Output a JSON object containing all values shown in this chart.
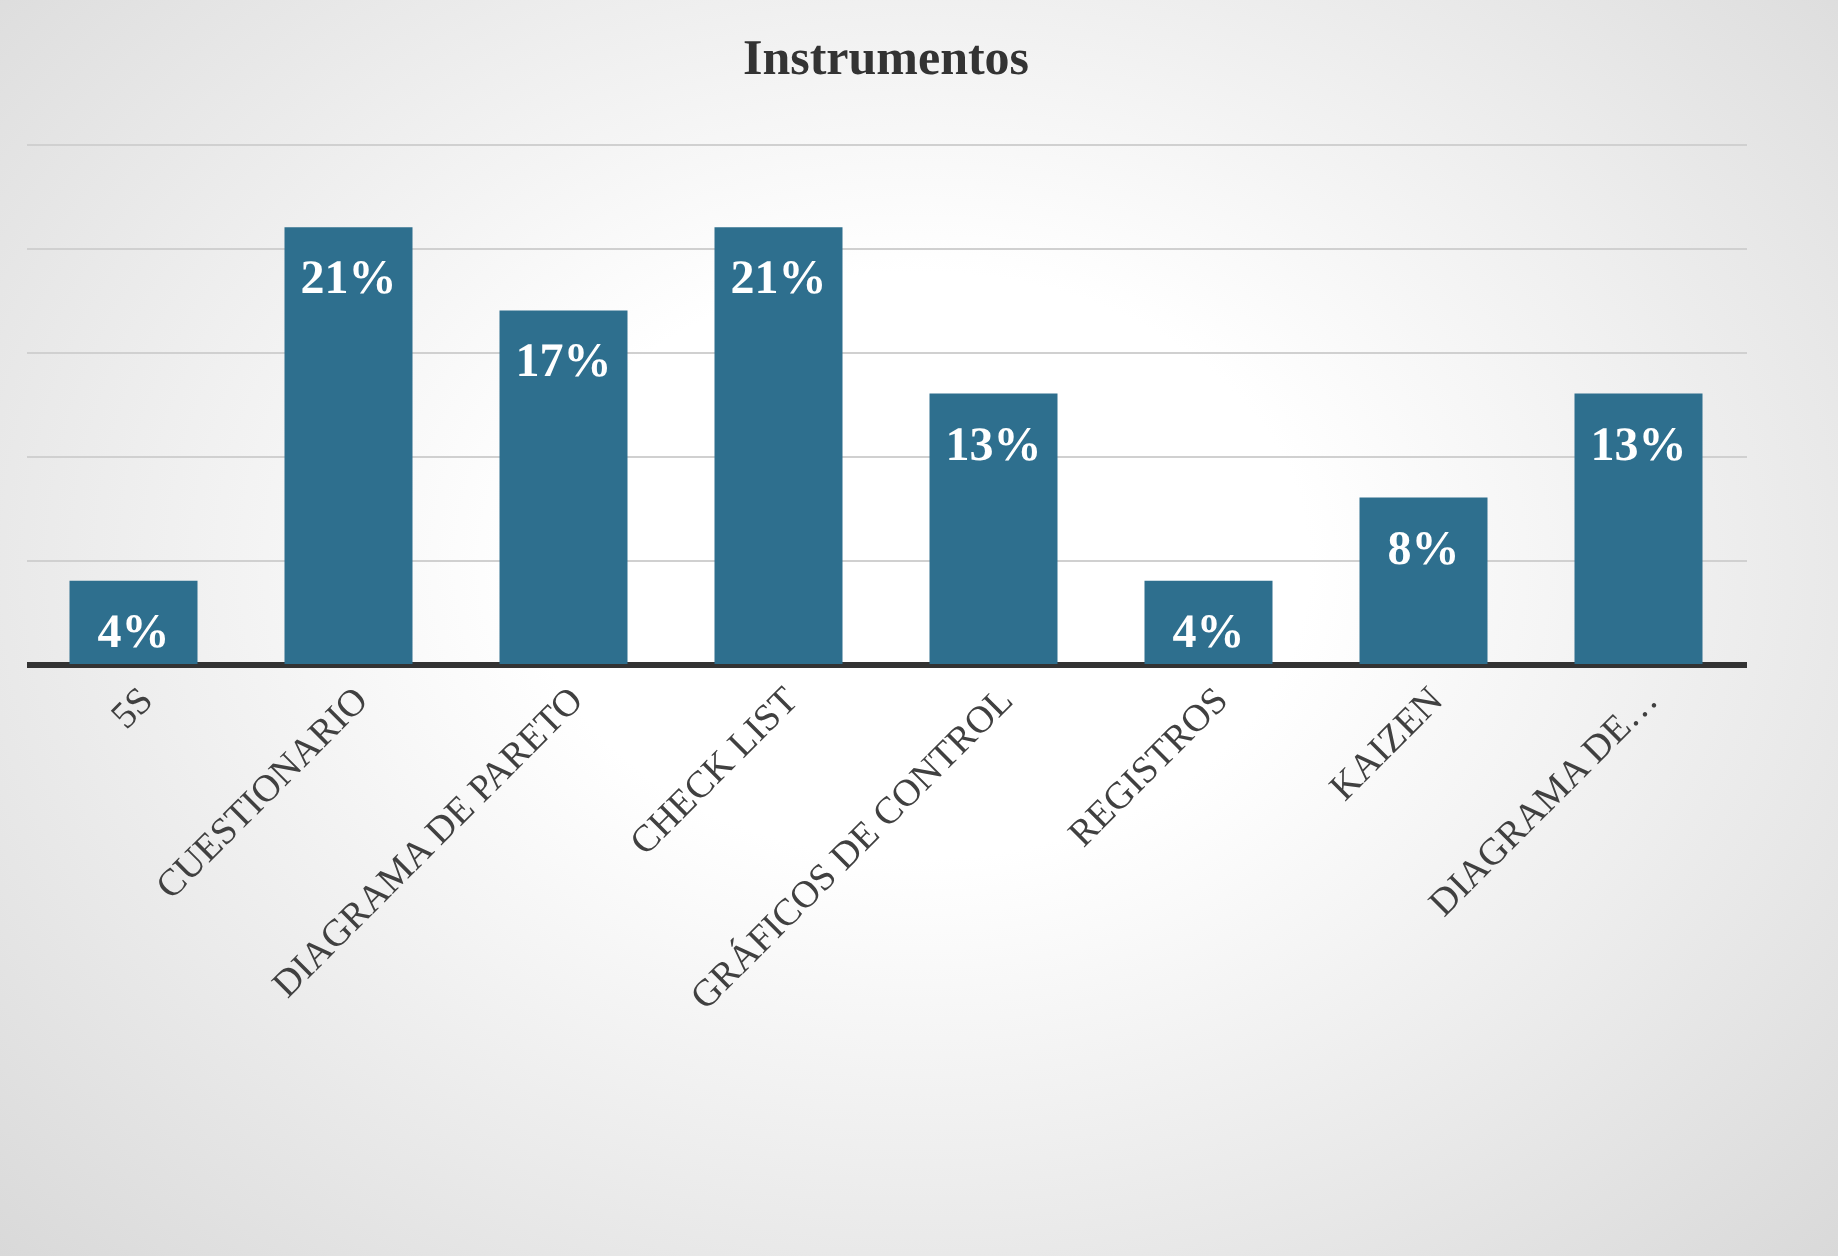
{
  "chart_data": {
    "type": "bar",
    "title": "Instrumentos",
    "categories": [
      "5S",
      "CUESTIONARIO",
      "DIAGRAMA DE PARETO",
      "CHECK LIST",
      "GRÁFICOS DE CONTROL",
      "REGISTROS",
      "KAIZEN",
      "DIAGRAMA DE…"
    ],
    "values": [
      4,
      21,
      17,
      21,
      13,
      4,
      8,
      13
    ],
    "value_labels": [
      "4%",
      "21%",
      "17%",
      "21%",
      "13%",
      "4%",
      "8%",
      "13%"
    ],
    "color": "#2e6f8e",
    "ylim": [
      0,
      25
    ],
    "yticks": [
      {
        "value": 0,
        "label": null
      },
      {
        "value": 5,
        "label": null
      },
      {
        "value": 10,
        "label": null
      },
      {
        "value": 15,
        "label": null
      },
      {
        "value": 20,
        "label": null
      },
      {
        "value": 25,
        "label": null
      }
    ],
    "tick_labels": "x",
    "grid": "y"
  }
}
